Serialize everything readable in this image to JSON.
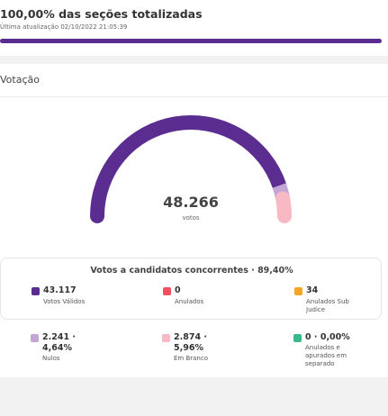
{
  "header": {
    "title": "100,00% das seções totalizadas",
    "last_update": "Última atualização 02/10/2022 21:05:39",
    "progress_percent": 100
  },
  "votacao": {
    "title": "Votação",
    "total_votes": "48.266",
    "total_votes_label": "votos",
    "gauge": {
      "segments": [
        {
          "name": "Votos Válidos",
          "value": 43117,
          "color": "#5c2d91"
        },
        {
          "name": "Nulos",
          "value": 2241,
          "color": "#c4a6d6"
        },
        {
          "name": "Em Branco",
          "value": 2874,
          "color": "#f9b9c4"
        }
      ]
    },
    "concorrentes": {
      "title": "Votos a candidatos concorrentes · 89,40%",
      "items": [
        {
          "value": "43.117",
          "label": "Votos Válidos",
          "color": "#5c2d91"
        },
        {
          "value": "0",
          "label": "Anulados",
          "color": "#f05060"
        },
        {
          "value": "34",
          "label": "Anulados Sub Judice",
          "color": "#f5a623"
        }
      ]
    },
    "outros": [
      {
        "value_line1": "2.241 ·",
        "value_line2": "4,64%",
        "label": "Nulos",
        "color": "#c4a6d6"
      },
      {
        "value_line1": "2.874 ·",
        "value_line2": "5,96%",
        "label": "Em Branco",
        "color": "#f9b9c4"
      },
      {
        "value_line1": "0 · 0,00%",
        "value_line2": "",
        "label": "Anulados e apurados em separado",
        "color": "#3bb88a"
      }
    ]
  }
}
